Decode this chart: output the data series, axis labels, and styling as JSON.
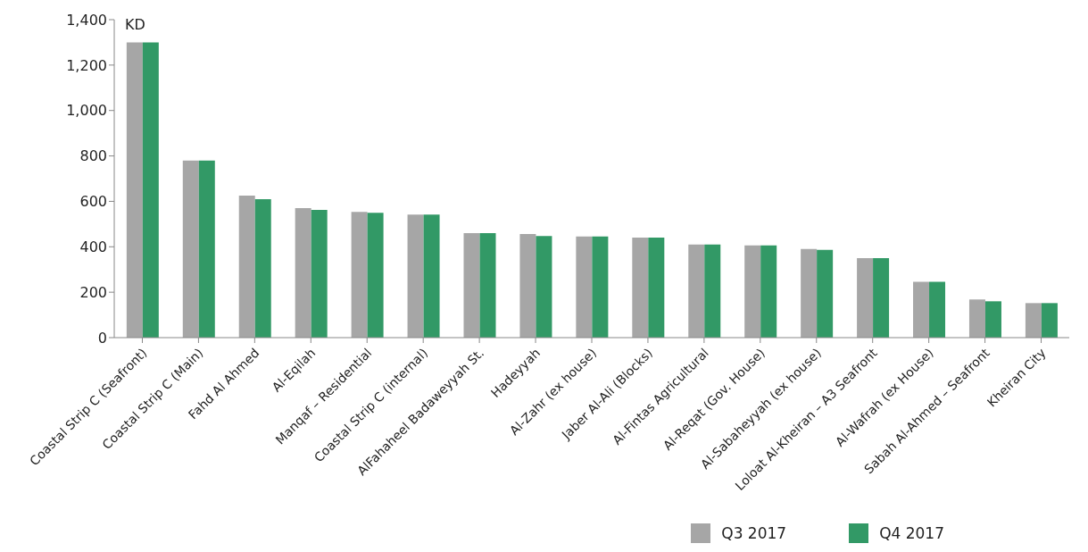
{
  "chart_data": {
    "type": "bar",
    "ylabel": "KD",
    "categories": [
      "Coastal Strip C (Seafront)",
      "Coastal Strip C (Main)",
      "Fahd Al Ahmed",
      "Al-Eqilah",
      "Manqaf – Residential",
      "Coastal Strip C (internal)",
      "AlFahaheel Badaweyyah St.",
      "Hadeyyah",
      "Al-Zahr (ex house)",
      "Jaber Al-Ali (Blocks)",
      "Al-Fintas Agricultural",
      "Al-Reqat (Gov. House)",
      "Al-Sabaheyyah (ex house)",
      "Loloat Al-Kheiran – A3 Seafront",
      "Al-Wafrah (ex House)",
      "Sabah Al-Ahmed – Seafront",
      "Kheiran City"
    ],
    "series": [
      {
        "name": "Q3 2017",
        "color": "#a6a6a6",
        "values": [
          1300,
          780,
          625,
          570,
          554,
          542,
          460,
          456,
          445,
          440,
          410,
          406,
          390,
          350,
          246,
          168,
          152
        ]
      },
      {
        "name": "Q4 2017",
        "color": "#329966",
        "values": [
          1300,
          780,
          610,
          562,
          550,
          542,
          460,
          447,
          445,
          440,
          410,
          406,
          386,
          350,
          246,
          160,
          152
        ]
      }
    ],
    "ylim": [
      0,
      1400
    ],
    "yticks": [
      0,
      200,
      400,
      600,
      800,
      {
        "value": 1000,
        "label": "1,000"
      },
      {
        "value": 1200,
        "label": "1,200"
      },
      {
        "value": 1400,
        "label": "1,400"
      }
    ],
    "grid": false,
    "legend": "bottom right"
  }
}
